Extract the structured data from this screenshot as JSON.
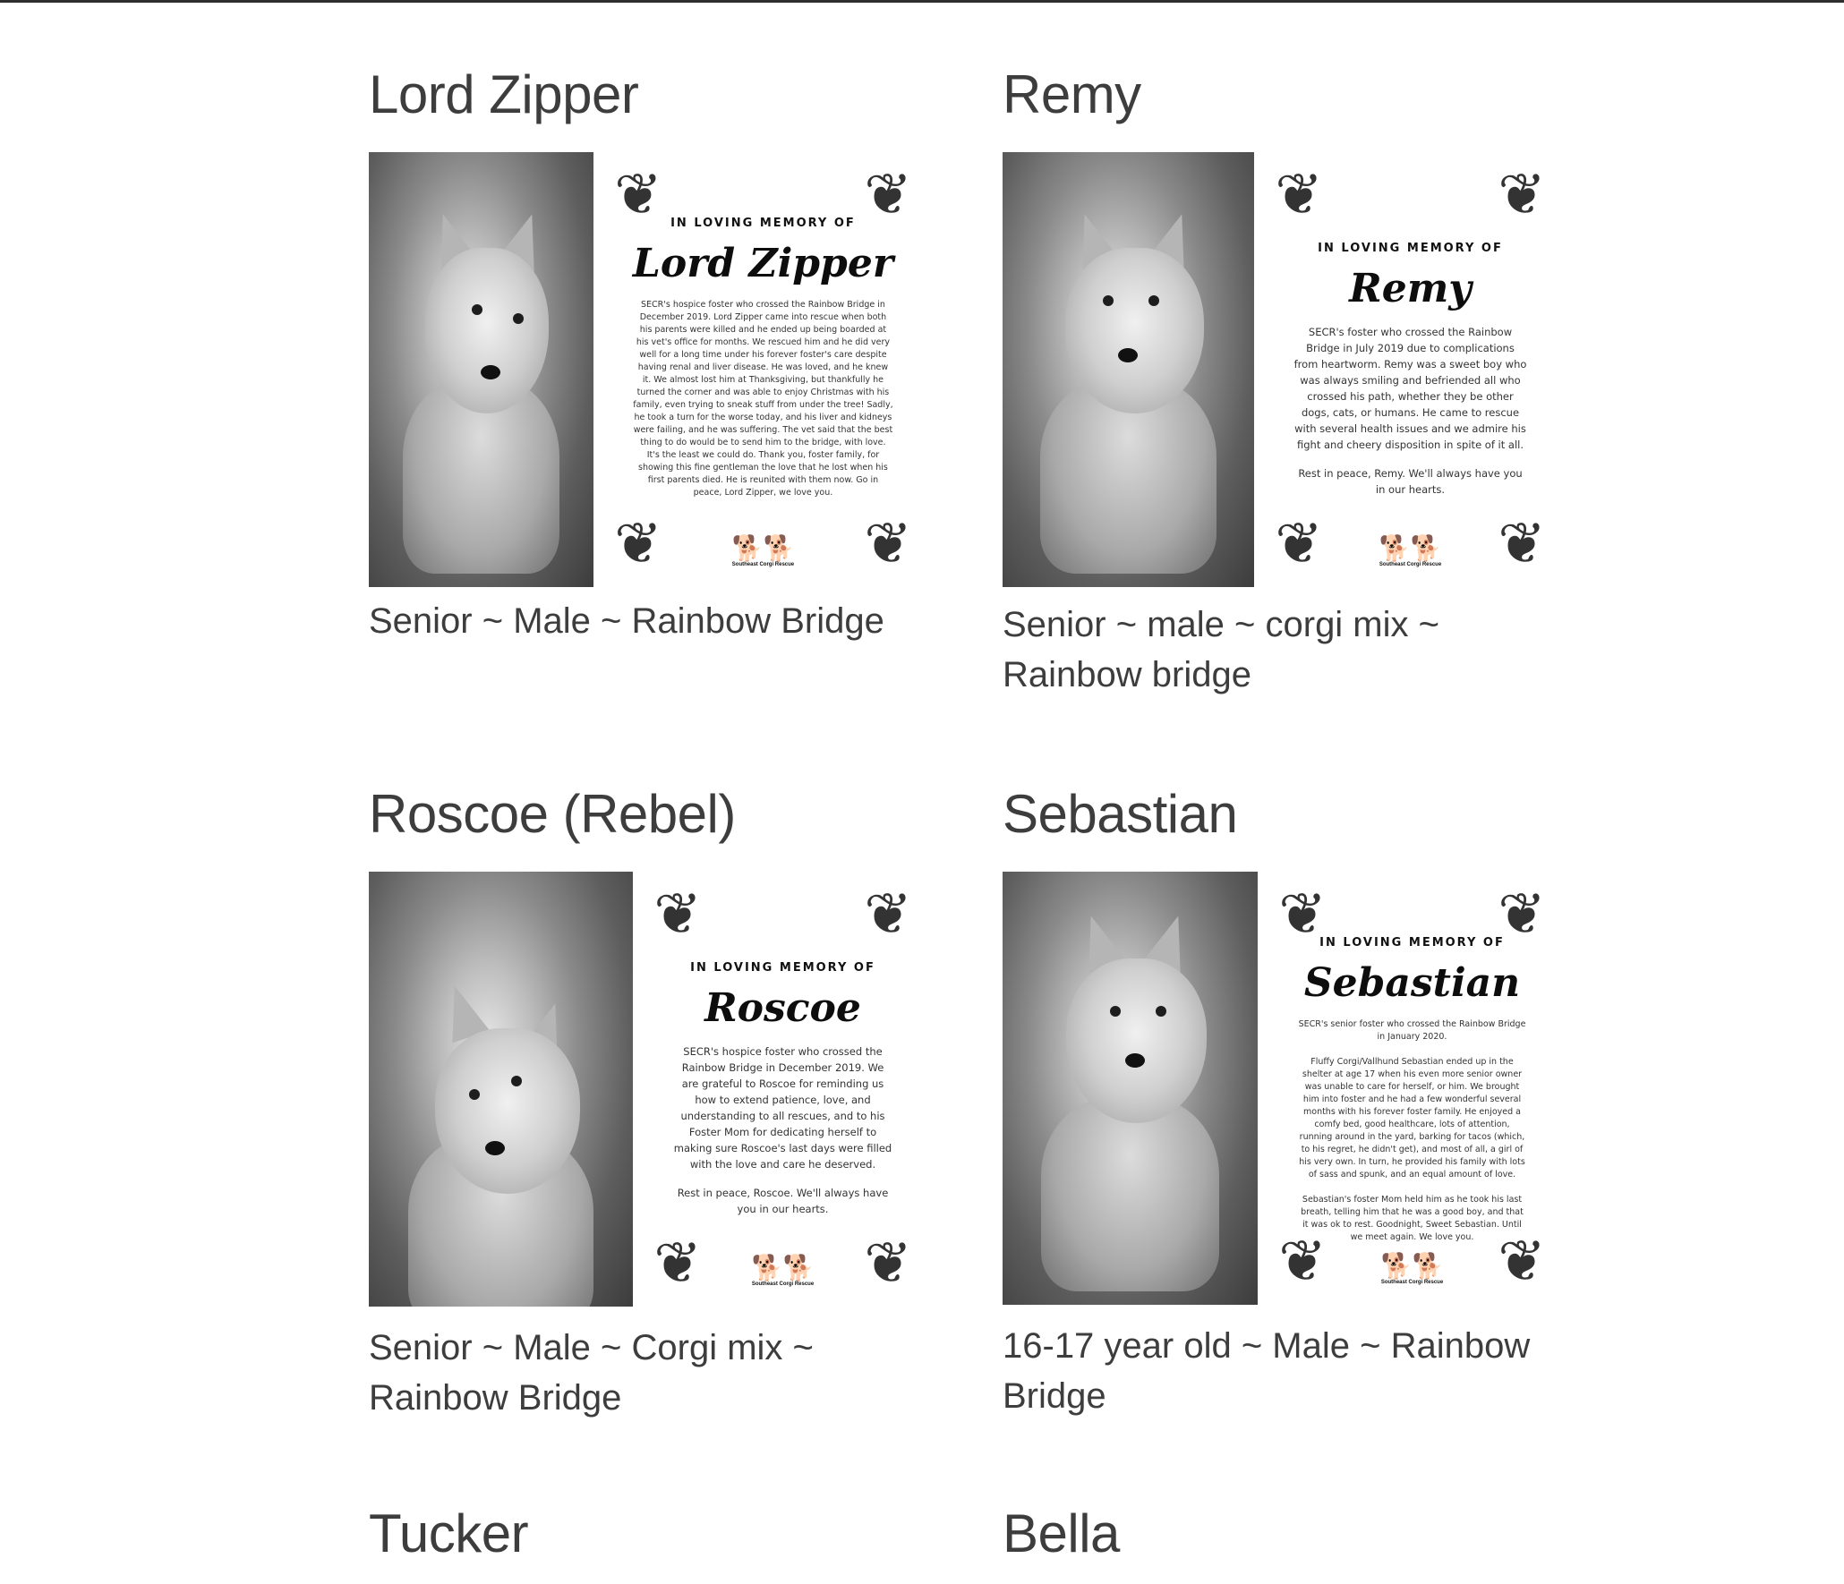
{
  "cards": [
    {
      "name": "Lord Zipper",
      "caption": "Senior ~ Male ~ Rainbow Bridge",
      "memorial": {
        "kicker": "IN LOVING MEMORY OF",
        "name": "Lord Zipper",
        "text": "SECR's hospice foster who crossed the Rainbow Bridge in December 2019. Lord Zipper came into rescue when both his parents were killed and he ended up being boarded at his vet's office for months. We rescued him and he did very well for a long time under his forever foster's care despite having renal and liver disease. He was loved, and he knew it. We almost lost him at Thanksgiving, but thankfully he turned the corner and was able to enjoy Christmas with his family, even trying to sneak stuff from under the tree! Sadly, he took a turn for the worse today, and his liver and kidneys were failing, and he was suffering. The vet said that the best thing to do would be to send him to the bridge, with love. It's the least we could do. Thank you, foster family, for showing this fine gentleman the love that he lost when his first parents died. He is reunited with them now. Go in peace, Lord Zipper, we love you.",
        "org": "Southeast Corgi Rescue"
      }
    },
    {
      "name": "Remy",
      "caption": "Senior ~ male ~ corgi mix ~ Rainbow bridge",
      "memorial": {
        "kicker": "IN LOVING MEMORY OF",
        "name": "Remy",
        "text": "SECR's foster who crossed the Rainbow Bridge in July 2019 due to complications from heartworm. Remy was a sweet boy who was always smiling and befriended all who crossed his path, whether they be other dogs, cats, or humans. He came to rescue with several health issues and we admire his fight and cheery disposition in spite of it all.",
        "text2": "Rest in peace, Remy. We'll always have you in our hearts.",
        "org": "Southeast Corgi Rescue"
      }
    },
    {
      "name": "Roscoe (Rebel)",
      "caption": "Senior ~ Male ~ Corgi mix ~ Rainbow Bridge",
      "memorial": {
        "kicker": "IN LOVING MEMORY OF",
        "name": "Roscoe",
        "text": "SECR's hospice foster who crossed the Rainbow Bridge in December 2019. We are grateful to Roscoe for reminding us how to extend patience, love, and understanding to all rescues, and to his Foster Mom for dedicating herself to making sure Roscoe's last days were filled with the love and care he deserved.",
        "text2": "Rest in peace, Roscoe. We'll always have you in our hearts.",
        "org": "Southeast Corgi Rescue"
      }
    },
    {
      "name": "Sebastian",
      "caption": "16-17 year old ~ Male ~ Rainbow Bridge",
      "memorial": {
        "kicker": "IN LOVING MEMORY OF",
        "name": "Sebastian",
        "text": "SECR's senior foster who crossed the Rainbow Bridge in January 2020.",
        "text2": "Fluffy Corgi/Vallhund Sebastian ended up in the shelter at age 17 when his even more senior owner was unable to care for herself, or him. We brought him into foster and he had a few wonderful several months with his forever foster family. He enjoyed a comfy bed, good healthcare, lots of attention, running around in the yard, barking for tacos (which, to his regret, he didn't get), and most of all, a girl of his very own. In turn, he provided his family with lots of sass and spunk, and an equal amount of love.",
        "text3": "Sebastian's foster Mom held him as he took his last breath, telling him that he was a good boy, and that it was ok to rest. Goodnight, Sweet Sebastian. Until we meet again. We love you.",
        "org": "Southeast Corgi Rescue"
      }
    },
    {
      "name": "Tucker"
    },
    {
      "name": "Bella"
    }
  ],
  "ornament_glyph": "❦",
  "logo_glyph": "🐕🐕"
}
